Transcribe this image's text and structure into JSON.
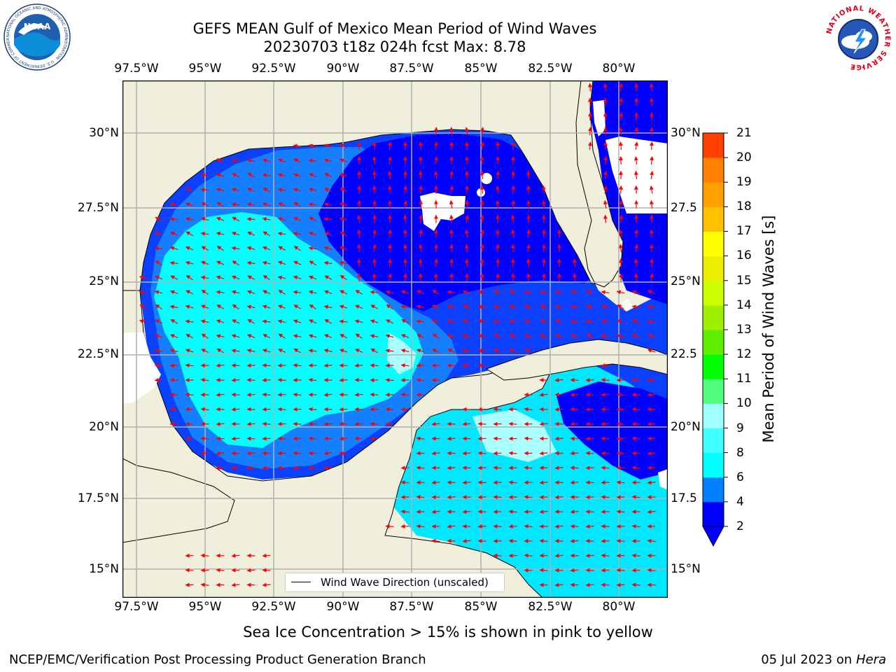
{
  "header": {
    "title_line1": "GEFS MEAN Gulf of Mexico Mean Period of Wind Waves",
    "title_line2": "20230703 t18z 024h fcst   Max: 8.78"
  },
  "logos": {
    "left": "NOAA",
    "left_ring_text": "NATIONAL OCEANIC AND ATMOSPHERIC ADMINISTRATION · U.S. DEPARTMENT OF COMMERCE",
    "right_ring_text": "NATIONAL WEATHER SERVICE"
  },
  "map": {
    "lon_ticks": [
      "97.5°W",
      "95°W",
      "92.5°W",
      "90°W",
      "87.5°W",
      "85°W",
      "82.5°W",
      "80°W"
    ],
    "lat_ticks_left": [
      "30°N",
      "27.5°N",
      "25°N",
      "22.5°N",
      "20°N",
      "17.5°N",
      "15°N"
    ],
    "lat_ticks_right": [
      "30°N",
      "27.5",
      "25°N",
      "22.5",
      "20°N",
      "17.5",
      "15°N"
    ],
    "extent": {
      "lon_min": -98.0,
      "lon_max": -78.25,
      "lat_min": 14.0,
      "lat_max": 31.75
    },
    "legend_label": "Wind Wave Direction (unscaled)",
    "colors": {
      "land": "#efefdc",
      "ocean_2_4": "#0000ff",
      "ocean_4_6": "#0f7fff",
      "ocean_6_8": "#00ffff",
      "ocean_8_9": "#aaffff",
      "arrow": "#ff0000",
      "grid": "#b0b0b0"
    }
  },
  "colorbar": {
    "label": "Mean Period of Wind Waves [s]",
    "tick_labels": [
      "2",
      "4",
      "6",
      "8",
      "9",
      "10",
      "11",
      "12",
      "13",
      "14",
      "15",
      "16",
      "17",
      "18",
      "19",
      "20",
      "21"
    ],
    "levels": [
      2,
      4,
      6,
      8,
      9,
      10,
      11,
      12,
      13,
      14,
      15,
      16,
      17,
      18,
      19,
      20,
      21
    ],
    "colors": [
      "#0000ff",
      "#0080ff",
      "#00ffff",
      "#40ffff",
      "#a0ffff",
      "#50ff80",
      "#00ff00",
      "#60ee00",
      "#a0ee00",
      "#ccff00",
      "#eeee00",
      "#ffff00",
      "#ffc000",
      "#ffa000",
      "#ff8000",
      "#ff4000",
      "#ff0000"
    ]
  },
  "footer": {
    "sea_ice_note": "Sea Ice Concentration > 15% is shown in pink to yellow",
    "left": "NCEP/EMC/Verification Post Processing Product Generation Branch",
    "right_date": "05 Jul 2023 on",
    "right_machine": "Hera"
  }
}
